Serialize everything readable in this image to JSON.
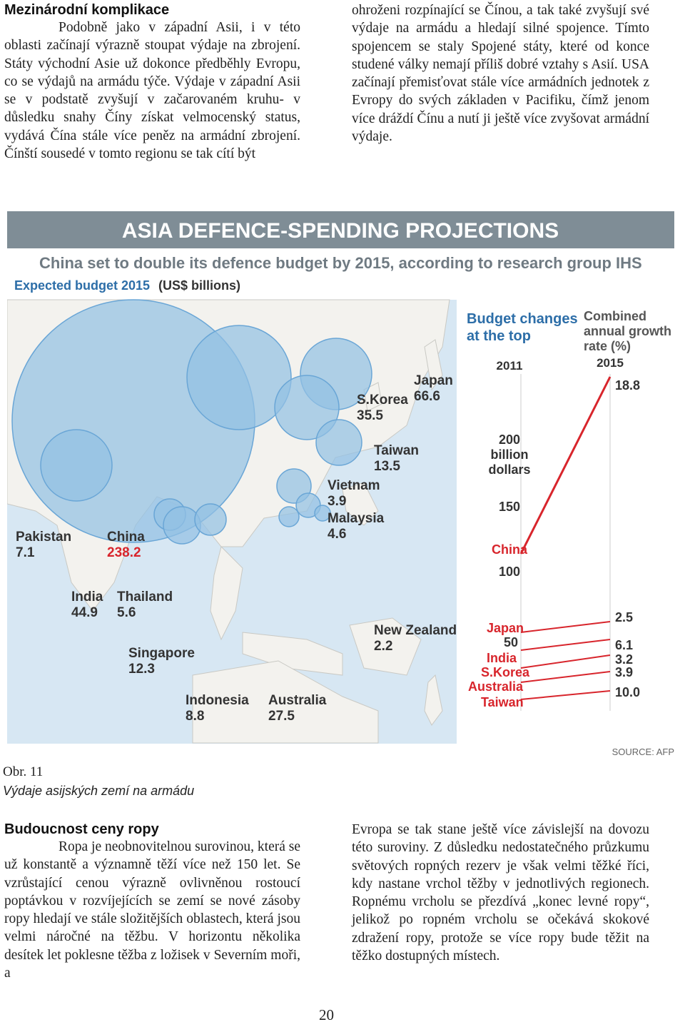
{
  "section1": {
    "heading": "Mezinárodní komplikace",
    "left_text": "Podobně jako v západní Asii, i v této oblasti začínají výrazně stoupat výdaje na zbrojení. Státy východní Asie už dokonce předběhly Evropu, co se výdajů na armádu týče. Výdaje v západní Asii se v podstatě zvyšují v začarovaném kruhu- v důsledku snahy Číny získat velmocenský status, vydává Čína stále více peněz na armádní zbrojení. Čínští sousedé v tomto regionu se tak cítí být",
    "right_text": "ohroženi rozpínající se Čínou, a tak také zvyšují své výdaje na armádu a hledají silné spojence. Tímto spojencem se staly Spojené státy, které od konce studené války nemají příliš dobré vztahy s Asií. USA začínají přemisťovat stále více armádních jednotek z Evropy do svých základen v Pacifiku, čímž jenom více dráždí Čínu a nutí ji ještě více zvyšovat armádní výdaje."
  },
  "infographic": {
    "title": "ASIA DEFENCE-SPENDING PROJECTIONS",
    "subtitle": "China set to double its defence budget by 2015, according to research group IHS",
    "budget_label": "Expected budget 2015",
    "budget_unit": "(US$ billions)",
    "source": "SOURCE: AFP",
    "colors": {
      "banner": "#7f8d96",
      "sea": "#d7e7f3",
      "bubble": "#93c1e3",
      "land": "#f3f2ee",
      "china": "#d8252c"
    },
    "countries": [
      {
        "name": "Japan",
        "value": "66.6"
      },
      {
        "name": "S.Korea",
        "value": "35.5"
      },
      {
        "name": "Taiwan",
        "value": "13.5"
      },
      {
        "name": "Vietnam",
        "value": "3.9"
      },
      {
        "name": "Malaysia",
        "value": "4.6"
      },
      {
        "name": "Pakistan",
        "value": "7.1"
      },
      {
        "name": "China",
        "value": "238.2"
      },
      {
        "name": "India",
        "value": "44.9"
      },
      {
        "name": "Thailand",
        "value": "5.6"
      },
      {
        "name": "Singapore",
        "value": "12.3"
      },
      {
        "name": "Indonesia",
        "value": "8.8"
      },
      {
        "name": "Australia",
        "value": "27.5"
      },
      {
        "name": "New Zealand",
        "value": "2.2"
      }
    ],
    "panel": {
      "title_line1": "Budget changes",
      "title_line2": "at the top",
      "rate_line1": "Combined",
      "rate_line2": "annual growth",
      "rate_line3": "rate (%)",
      "year_start": "2011",
      "year_end": "2015",
      "scale_line1": "200",
      "scale_line2": "billion",
      "scale_line3": "dollars",
      "tick_150": "150",
      "tick_100": "100",
      "china_label": "China",
      "china_rate": "18.8",
      "others": [
        {
          "name": "Japan",
          "rate": "2.5"
        },
        {
          "name": "India",
          "rate": "6.1"
        },
        {
          "name": "S.Korea",
          "rate": "3.2"
        },
        {
          "name": "Australia",
          "rate": "3.9"
        },
        {
          "name": "Taiwan",
          "rate": "10.0"
        }
      ],
      "japan_50": "50"
    }
  },
  "caption": {
    "number": "Obr. 11",
    "text": "Výdaje asijských zemí na armádu"
  },
  "section2": {
    "heading": "Budoucnost ceny ropy",
    "left_text": "Ropa je neobnovitelnou surovinou, která se už konstantě a významně těží více než 150 let. Se vzrůstající cenou výrazně ovlivněnou rostoucí poptávkou v rozvíjejících se zemí se nové zásoby ropy hledají ve stále složitějších oblastech, která jsou velmi náročné na těžbu. V horizontu několika desítek let poklesne těžba z ložisek v Severním moři, a",
    "right_text": "Evropa se tak stane ještě více závislejší na dovozu této suroviny. Z důsledku nedostatečného průzkumu světových ropných rezerv je však velmi těžké říci, kdy nastane vrchol těžby v jednotlivých regionech. Ropnému vrcholu se přezdívá „konec levné ropy“, jelikož po ropném vrcholu se očekává skokové zdražení ropy, protože se více ropy bude těžit na těžko dostupných místech."
  },
  "page_number": "20"
}
